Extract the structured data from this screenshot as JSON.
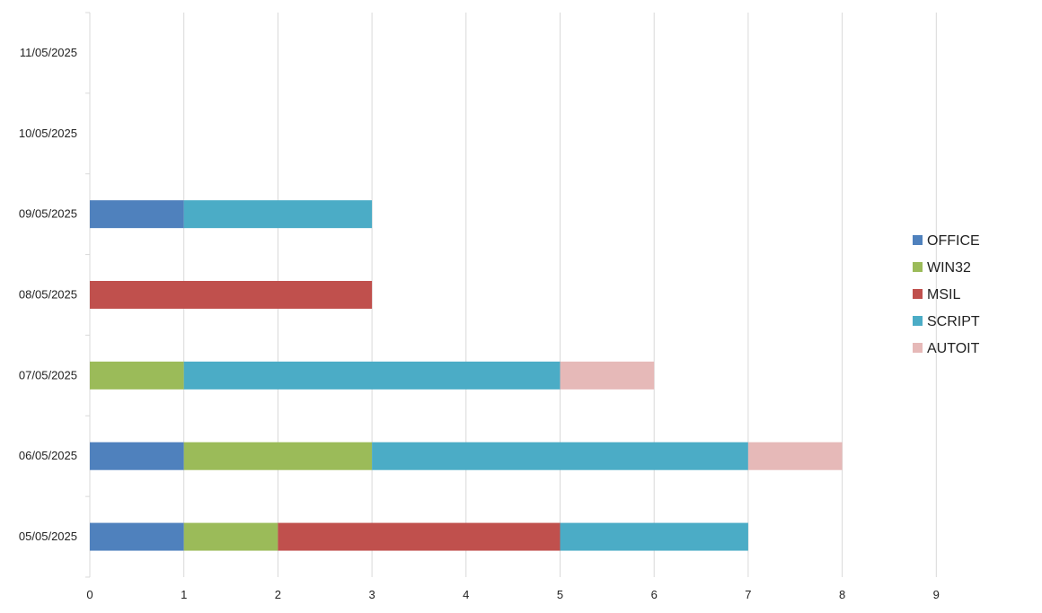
{
  "chart_data": {
    "type": "bar",
    "orientation": "horizontal",
    "stacked": true,
    "title": "",
    "xlabel": "",
    "ylabel": "",
    "categories": [
      "05/05/2025",
      "06/05/2025",
      "07/05/2025",
      "08/05/2025",
      "09/05/2025",
      "10/05/2025",
      "11/05/2025"
    ],
    "xlim": [
      0,
      9
    ],
    "x_ticks": [
      0,
      1,
      2,
      3,
      4,
      5,
      6,
      7,
      8,
      9
    ],
    "grid": "vertical",
    "legend_position": "right",
    "series": [
      {
        "name": "OFFICE",
        "color": "#4F81BD",
        "values": [
          1,
          1,
          0,
          0,
          1,
          0,
          0
        ]
      },
      {
        "name": "WIN32",
        "color": "#9BBB59",
        "values": [
          1,
          2,
          1,
          0,
          0,
          0,
          0
        ]
      },
      {
        "name": "MSIL",
        "color": "#C0504D",
        "values": [
          3,
          0,
          0,
          3,
          0,
          0,
          0
        ]
      },
      {
        "name": "SCRIPT",
        "color": "#4BACC6",
        "values": [
          2,
          4,
          4,
          0,
          2,
          0,
          0
        ]
      },
      {
        "name": "AUTOIT",
        "color": "#E6B9B8",
        "values": [
          0,
          1,
          1,
          0,
          0,
          0,
          0
        ]
      }
    ]
  },
  "legend_display": [
    "OFFICE",
    "WIN32",
    "MSIL",
    "SCRIPT",
    "AUTOIT"
  ]
}
